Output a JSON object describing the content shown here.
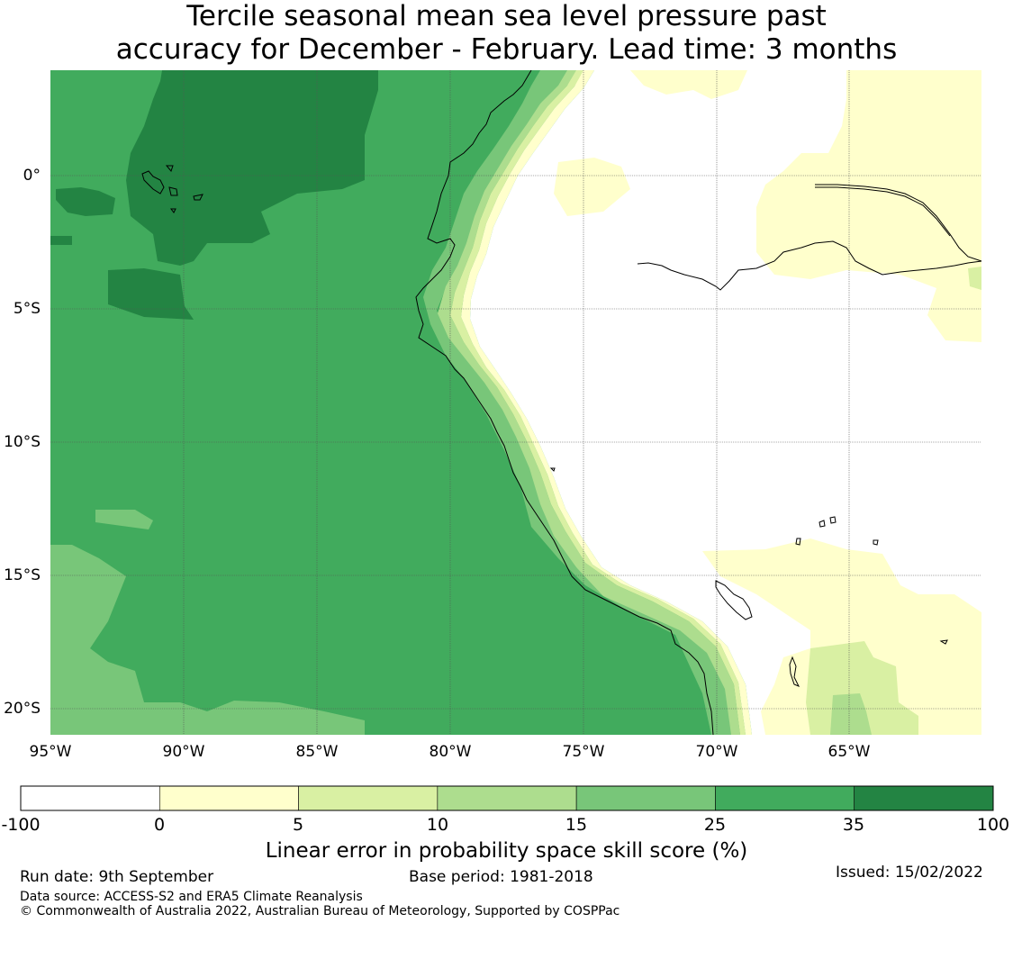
{
  "title": {
    "line1": "Tercile seasonal mean sea level pressure past",
    "line2": "accuracy for December - February. Lead time: 3 months"
  },
  "axes": {
    "x_ticks": [
      "95°W",
      "90°W",
      "85°W",
      "80°W",
      "75°W",
      "70°W",
      "65°W"
    ],
    "y_ticks": [
      "0°",
      "5°S",
      "10°S",
      "15°S",
      "20°S"
    ]
  },
  "colorbar": {
    "title": "Linear error in probability space skill score (%)",
    "bounds": [
      "-100",
      "0",
      "5",
      "10",
      "15",
      "25",
      "35",
      "100"
    ],
    "colors": [
      "#ffffff",
      "#ffffcc",
      "#d9f0a3",
      "#addd8e",
      "#78c679",
      "#41ab5d",
      "#238443"
    ]
  },
  "footer": {
    "run_date": "Run date: 9th September",
    "base_period": "Base period: 1981-2018",
    "issued": "Issued: 15/02/2022",
    "data_source": "Data source: ACCESS-S2 and ERA5 Climate Reanalysis",
    "copyright": "© Commonwealth of Australia 2022, Australian Bureau of Meteorology, Supported by COSPPac"
  }
}
